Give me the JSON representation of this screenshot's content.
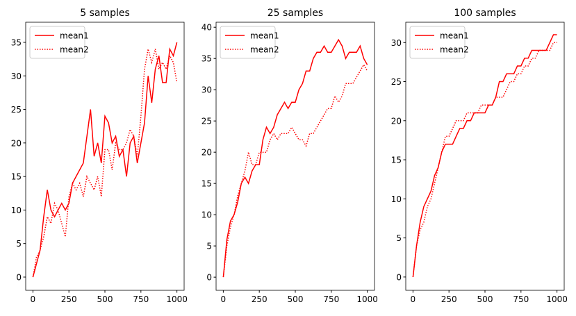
{
  "chart_data": [
    {
      "type": "line",
      "title": "5 samples",
      "x": [
        0,
        25,
        50,
        75,
        100,
        125,
        150,
        175,
        200,
        225,
        250,
        275,
        300,
        325,
        350,
        375,
        400,
        425,
        450,
        475,
        500,
        525,
        550,
        575,
        600,
        625,
        650,
        675,
        700,
        725,
        750,
        775,
        800,
        825,
        850,
        875,
        900,
        925,
        950,
        975,
        1000
      ],
      "series": [
        {
          "name": "mean1",
          "color": "#ff0000",
          "linestyle": "solid",
          "values": [
            0,
            2,
            4,
            9,
            13,
            10,
            9,
            10,
            11,
            10,
            11,
            14,
            15,
            16,
            17,
            21,
            25,
            18,
            20,
            17,
            24,
            23,
            20,
            21,
            18,
            19,
            15,
            20,
            21,
            17,
            20,
            23,
            30,
            26,
            31,
            33,
            29,
            29,
            34,
            33,
            35
          ]
        },
        {
          "name": "mean2",
          "color": "#ff0000",
          "linestyle": "dotted",
          "values": [
            0,
            3,
            4,
            6,
            9,
            8,
            11,
            10,
            8,
            6,
            12,
            14,
            13,
            14,
            12,
            15,
            14,
            13,
            15,
            12,
            19,
            19,
            16,
            20,
            19,
            19,
            20,
            22,
            21,
            18,
            24,
            31,
            34,
            32,
            34,
            31,
            32,
            31,
            33,
            32,
            29
          ]
        }
      ],
      "xlim": [
        -50,
        1050
      ],
      "ylim": [
        -1.97,
        38.0
      ],
      "xticks": [
        0,
        250,
        500,
        750,
        1000
      ],
      "yticks": [
        0,
        5,
        10,
        15,
        20,
        25,
        30,
        35
      ],
      "legend": "upper left"
    },
    {
      "type": "line",
      "title": "25 samples",
      "x": [
        0,
        25,
        50,
        75,
        100,
        125,
        150,
        175,
        200,
        225,
        250,
        275,
        300,
        325,
        350,
        375,
        400,
        425,
        450,
        475,
        500,
        525,
        550,
        575,
        600,
        625,
        650,
        675,
        700,
        725,
        750,
        775,
        800,
        825,
        850,
        875,
        900,
        925,
        950,
        975,
        1000
      ],
      "series": [
        {
          "name": "mean1",
          "color": "#ff0000",
          "linestyle": "solid",
          "values": [
            0,
            6,
            9,
            10,
            12,
            15,
            16,
            15,
            17,
            18,
            18,
            22,
            24,
            23,
            24,
            26,
            27,
            28,
            27,
            28,
            28,
            30,
            31,
            33,
            33,
            35,
            36,
            36,
            37,
            36,
            36,
            37,
            38,
            37,
            35,
            36,
            36,
            36,
            37,
            35,
            34
          ]
        },
        {
          "name": "mean2",
          "color": "#ff0000",
          "linestyle": "dotted",
          "values": [
            0,
            5,
            8,
            10,
            13,
            15,
            17,
            20,
            18,
            18,
            20,
            20,
            20,
            22,
            23,
            22,
            23,
            23,
            23,
            24,
            23,
            22,
            22,
            21,
            23,
            23,
            24,
            25,
            26,
            27,
            27,
            29,
            28,
            29,
            31,
            31,
            31,
            32,
            33,
            34,
            33
          ]
        }
      ],
      "xlim": [
        -50,
        1050
      ],
      "ylim": [
        -2.1,
        40.8
      ],
      "xticks": [
        0,
        250,
        500,
        750,
        1000
      ],
      "yticks": [
        0,
        5,
        10,
        15,
        20,
        25,
        30,
        35,
        40
      ],
      "legend": "upper left"
    },
    {
      "type": "line",
      "title": "100 samples",
      "x": [
        0,
        25,
        50,
        75,
        100,
        125,
        150,
        175,
        200,
        225,
        250,
        275,
        300,
        325,
        350,
        375,
        400,
        425,
        450,
        475,
        500,
        525,
        550,
        575,
        600,
        625,
        650,
        675,
        700,
        725,
        750,
        775,
        800,
        825,
        850,
        875,
        900,
        925,
        950,
        975,
        1000
      ],
      "series": [
        {
          "name": "mean1",
          "color": "#ff0000",
          "linestyle": "solid",
          "values": [
            0,
            4,
            7,
            9,
            10,
            11,
            13,
            14,
            16,
            17,
            17,
            17,
            18,
            19,
            19,
            20,
            20,
            21,
            21,
            21,
            21,
            22,
            22,
            23,
            25,
            25,
            26,
            26,
            26,
            27,
            27,
            28,
            28,
            29,
            29,
            29,
            29,
            29,
            30,
            31,
            31
          ]
        },
        {
          "name": "mean2",
          "color": "#ff0000",
          "linestyle": "dotted",
          "values": [
            0,
            4,
            6,
            7,
            9,
            10,
            12,
            14,
            16,
            18,
            18,
            19,
            20,
            20,
            20,
            21,
            21,
            21,
            21,
            22,
            22,
            22,
            22,
            23,
            23,
            23,
            24,
            25,
            25,
            26,
            26,
            27,
            27,
            28,
            28,
            29,
            29,
            29,
            29,
            30,
            30
          ]
        }
      ],
      "xlim": [
        -50,
        1050
      ],
      "ylim": [
        -1.7,
        32.6
      ],
      "xticks": [
        0,
        250,
        500,
        750,
        1000
      ],
      "yticks": [
        0,
        5,
        10,
        15,
        20,
        25,
        30
      ],
      "legend": "upper left"
    }
  ]
}
